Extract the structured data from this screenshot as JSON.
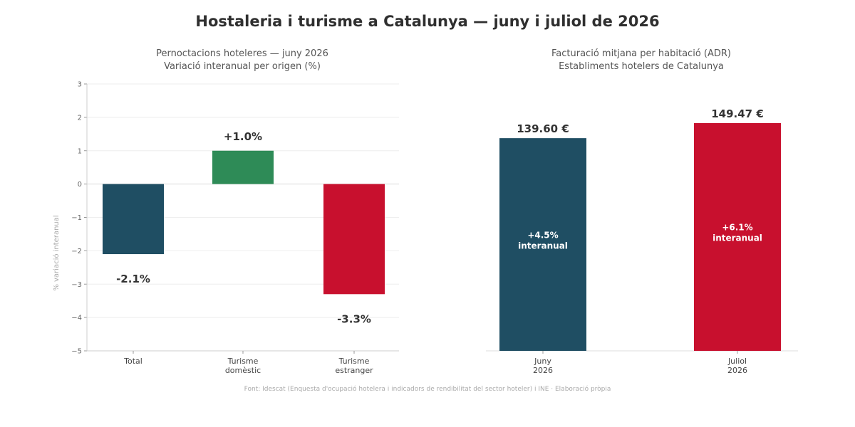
{
  "title": "Hostaleria i turisme a Catalunya — juny i juliol de 2026",
  "source": "Font: Idescat (Enquesta d'ocupació hotelera i indicadors de rendibilitat del sector hoteler) i INE · Elaboració pròpia",
  "colors": {
    "total": "#1f4e63",
    "domestic": "#2e8b57",
    "foreign": "#c8102e",
    "june": "#1f4e63",
    "july": "#c8102e"
  },
  "chart_data": [
    {
      "type": "bar",
      "title": "Pernoctacions hoteleres — juny 2026",
      "subtitle": "Variació interanual per origen (%)",
      "ylabel": "% variació interanual",
      "xlabel": "",
      "categories": [
        "Total",
        "Turisme domèstic",
        "Turisme estranger"
      ],
      "category_lines": [
        [
          "Total"
        ],
        [
          "Turisme",
          "domèstic"
        ],
        [
          "Turisme",
          "estranger"
        ]
      ],
      "values": [
        -2.1,
        1.0,
        -3.3
      ],
      "value_labels": [
        "-2.1%",
        "+1.0%",
        "-3.3%"
      ],
      "ylim": [
        -5,
        3
      ],
      "yticks": [
        3,
        2,
        1,
        0,
        -1,
        -2,
        -3,
        -4,
        -5
      ],
      "ytick_labels": [
        "3",
        "2",
        "1",
        "0",
        "−1",
        "−2",
        "−3",
        "−4",
        "−5"
      ],
      "grid": true,
      "legend": "none"
    },
    {
      "type": "bar",
      "title": "Facturació mitjana per habitació (ADR)",
      "subtitle": "Establiments hotelers de Catalunya",
      "ylabel": "",
      "xlabel": "",
      "categories": [
        "Juny 2026",
        "Juliol 2026"
      ],
      "category_lines": [
        [
          "Juny",
          "2026"
        ],
        [
          "Juliol",
          "2026"
        ]
      ],
      "values": [
        139.6,
        149.47
      ],
      "value_labels": [
        "139.60 €",
        "149.47 €"
      ],
      "inner_labels": [
        [
          "+4.5%",
          "interanual"
        ],
        [
          "+6.1%",
          "interanual"
        ]
      ],
      "grid": false,
      "legend": "none"
    }
  ]
}
